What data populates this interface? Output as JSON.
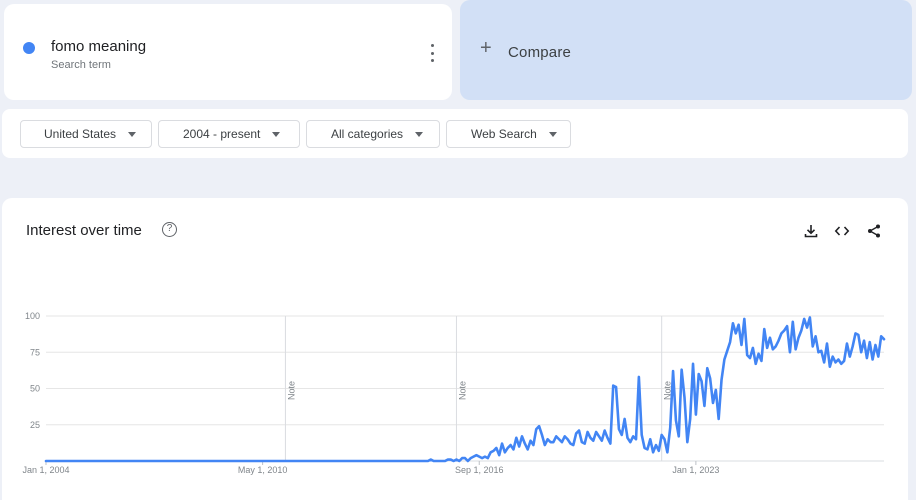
{
  "term": {
    "name": "fomo meaning",
    "subtitle": "Search term",
    "color": "#4285f4"
  },
  "compare": {
    "label": "Compare",
    "icon": "plus-icon"
  },
  "filters": [
    {
      "label": "United States"
    },
    {
      "label": "2004 - present"
    },
    {
      "label": "All categories"
    },
    {
      "label": "Web Search"
    }
  ],
  "chart": {
    "title": "Interest over time",
    "help_icon": "?",
    "toolbar": [
      "download-icon",
      "embed-icon",
      "share-icon"
    ]
  },
  "chart_data": {
    "type": "line",
    "series": [
      {
        "color": "#4285f4"
      }
    ],
    "x_start": "2004-01",
    "x_step": "monthly",
    "x_tick_labels": [
      "Jan 1, 2004",
      "May 1, 2010",
      "Sep 1, 2016",
      "Jan 1, 2023"
    ],
    "y_ticks": [
      25,
      50,
      75,
      100
    ],
    "ylim": [
      0,
      100
    ],
    "notes": [
      "Note",
      "Note",
      "Note"
    ],
    "note_dates": [
      "2011-01",
      "2016-01",
      "2022-01"
    ],
    "grid": true,
    "values": [
      0,
      0,
      0,
      0,
      0,
      0,
      0,
      0,
      0,
      0,
      0,
      0,
      0,
      0,
      0,
      0,
      0,
      0,
      0,
      0,
      0,
      0,
      0,
      0,
      0,
      0,
      0,
      0,
      0,
      0,
      0,
      0,
      0,
      0,
      0,
      0,
      0,
      0,
      0,
      0,
      0,
      0,
      0,
      0,
      0,
      0,
      0,
      0,
      0,
      0,
      0,
      0,
      0,
      0,
      0,
      0,
      0,
      0,
      0,
      0,
      0,
      0,
      0,
      0,
      0,
      0,
      0,
      0,
      0,
      0,
      0,
      0,
      0,
      0,
      0,
      0,
      0,
      0,
      0,
      0,
      0,
      0,
      0,
      0,
      0,
      0,
      0,
      0,
      0,
      0,
      0,
      0,
      0,
      0,
      0,
      0,
      0,
      0,
      0,
      0,
      0,
      0,
      0,
      0,
      0,
      0,
      0,
      0,
      0,
      0,
      0,
      0,
      0,
      0,
      0,
      0,
      0,
      0,
      0,
      0,
      0,
      0,
      0,
      0,
      0,
      0,
      0,
      0,
      0,
      0,
      0,
      0,
      0,
      0,
      0,
      1,
      0,
      0,
      0,
      0,
      0,
      1,
      1,
      0,
      1,
      0,
      2,
      2,
      0,
      2,
      3,
      4,
      3,
      2,
      3,
      2,
      6,
      7,
      9,
      4,
      12,
      6,
      9,
      11,
      8,
      16,
      10,
      17,
      12,
      8,
      14,
      11,
      22,
      24,
      18,
      11,
      15,
      13,
      13,
      17,
      15,
      13,
      17,
      15,
      12,
      11,
      19,
      21,
      13,
      12,
      20,
      16,
      14,
      20,
      17,
      14,
      21,
      16,
      12,
      52,
      51,
      22,
      18,
      29,
      16,
      13,
      17,
      15,
      58,
      18,
      9,
      8,
      15,
      6,
      11,
      7,
      18,
      15,
      6,
      23,
      62,
      28,
      17,
      63,
      44,
      13,
      29,
      67,
      32,
      60,
      55,
      38,
      64,
      57,
      40,
      49,
      29,
      56,
      70,
      76,
      82,
      95,
      88,
      94,
      80,
      98,
      73,
      71,
      78,
      67,
      74,
      69,
      91,
      78,
      85,
      77,
      79,
      83,
      88,
      90,
      93,
      75,
      96,
      77,
      85,
      90,
      98,
      92,
      99,
      79,
      86,
      75,
      76,
      68,
      81,
      65,
      72,
      68,
      70,
      67,
      69,
      81,
      72,
      79,
      88,
      87,
      75,
      83,
      71,
      82,
      70,
      80,
      72,
      86,
      84
    ]
  }
}
